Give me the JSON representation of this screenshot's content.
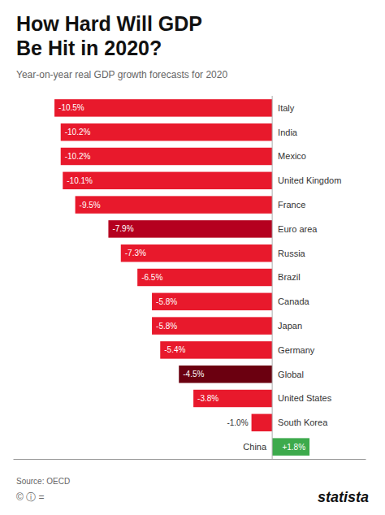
{
  "chart_data": {
    "type": "bar",
    "orientation": "horizontal",
    "title": "How Hard Will GDP Be Hit in 2020?",
    "subtitle": "Year-on-year real GDP growth forecasts for 2020",
    "annotations": [
      "Source: OECD",
      "© ⓘ =",
      "statista"
    ],
    "categories": [
      "Italy",
      "India",
      "Mexico",
      "United Kingdom",
      "France",
      "Euro area",
      "Russia",
      "Brazil",
      "Canada",
      "Japan",
      "Germany",
      "Global",
      "United States",
      "South Korea",
      "China"
    ],
    "values": [
      -10.5,
      -10.2,
      -10.2,
      -10.1,
      -9.5,
      -7.9,
      -7.3,
      -6.5,
      -5.8,
      -5.8,
      -5.4,
      -4.5,
      -3.8,
      -1.0,
      1.8
    ],
    "value_labels": [
      "-10.5%",
      "-10.2%",
      "-10.2%",
      "-10.1%",
      "-9.5%",
      "-7.9%",
      "-7.3%",
      "-6.5%",
      "-5.8%",
      "-5.8%",
      "-5.4%",
      "-4.5%",
      "-3.8%",
      "-1.0%",
      "+1.8%"
    ],
    "colors": [
      "#e8192c",
      "#e8192c",
      "#e8192c",
      "#e8192c",
      "#e8192c",
      "#b5001f",
      "#e8192c",
      "#e8192c",
      "#e8192c",
      "#e8192c",
      "#e8192c",
      "#6b0010",
      "#e8192c",
      "#e8192c",
      "#3daa4c"
    ],
    "data_labels": true,
    "tick_labels": false,
    "xlim": [
      -12.5,
      4.5
    ]
  }
}
